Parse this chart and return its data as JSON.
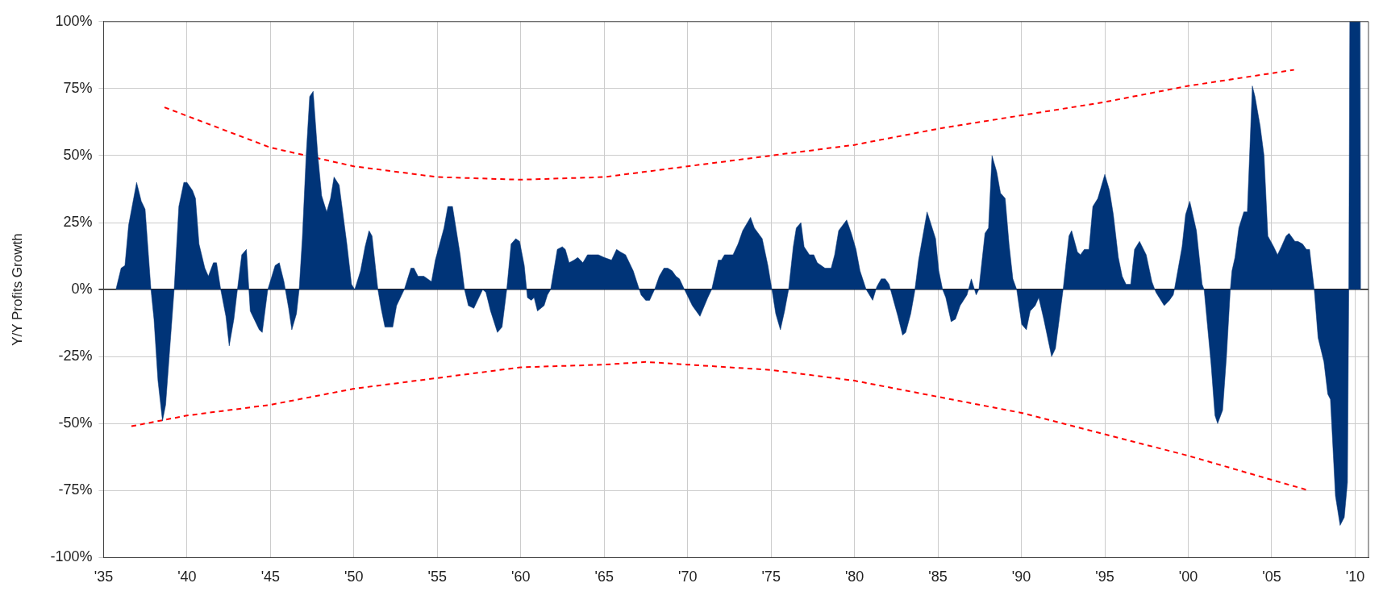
{
  "chart_data": {
    "type": "area",
    "ylabel": "Y/Y Profits Growth",
    "xlim": [
      1935,
      2010.8
    ],
    "ylim": [
      -100,
      100
    ],
    "xticks": [
      {
        "value": 1935,
        "label": "'35"
      },
      {
        "value": 1940,
        "label": "'40"
      },
      {
        "value": 1945,
        "label": "'45"
      },
      {
        "value": 1950,
        "label": "'50"
      },
      {
        "value": 1955,
        "label": "'55"
      },
      {
        "value": 1960,
        "label": "'60"
      },
      {
        "value": 1965,
        "label": "'65"
      },
      {
        "value": 1970,
        "label": "'70"
      },
      {
        "value": 1975,
        "label": "'75"
      },
      {
        "value": 1980,
        "label": "'80"
      },
      {
        "value": 1985,
        "label": "'85"
      },
      {
        "value": 1990,
        "label": "'90"
      },
      {
        "value": 1995,
        "label": "'95"
      },
      {
        "value": 2000,
        "label": "'00"
      },
      {
        "value": 2005,
        "label": "'05"
      },
      {
        "value": 2010,
        "label": "'10"
      }
    ],
    "yticks": [
      {
        "value": -100,
        "label": "-100%"
      },
      {
        "value": -75,
        "label": "-75%"
      },
      {
        "value": -50,
        "label": "-50%"
      },
      {
        "value": -25,
        "label": "-25%"
      },
      {
        "value": 0,
        "label": "0%"
      },
      {
        "value": 25,
        "label": "25%"
      },
      {
        "value": 50,
        "label": "50%"
      },
      {
        "value": 75,
        "label": "75%"
      },
      {
        "value": 100,
        "label": "100%"
      }
    ],
    "grid": true,
    "legend": false,
    "marker": "none",
    "series": [
      {
        "color": "#003478",
        "x": [
          1935.74,
          1936.05,
          1936.28,
          1936.5,
          1936.98,
          1937.26,
          1937.49,
          1937.84,
          1938.02,
          1938.26,
          1938.53,
          1938.72,
          1939.23,
          1939.51,
          1939.81,
          1940,
          1940.33,
          1940.51,
          1940.72,
          1941.07,
          1941.28,
          1941.58,
          1941.77,
          1942.02,
          1942.33,
          1942.53,
          1942.81,
          1943.02,
          1943.28,
          1943.56,
          1943.79,
          1944.33,
          1944.51,
          1944.84,
          1945.28,
          1945.53,
          1945.81,
          1946.09,
          1946.28,
          1946.56,
          1946.72,
          1946.91,
          1947.14,
          1947.35,
          1947.56,
          1947.84,
          1948.07,
          1948.37,
          1948.6,
          1948.81,
          1949.12,
          1949.58,
          1949.86,
          1950.05,
          1950.4,
          1950.67,
          1950.91,
          1951.09,
          1951.44,
          1951.63,
          1951.86,
          1952.09,
          1952.33,
          1952.56,
          1953.02,
          1953.42,
          1953.6,
          1953.84,
          1954.19,
          1954.65,
          1954.88,
          1955.4,
          1955.63,
          1955.91,
          1956.37,
          1956.63,
          1956.86,
          1957.19,
          1957.72,
          1957.91,
          1958.19,
          1958.6,
          1958.88,
          1959.16,
          1959.42,
          1959.7,
          1959.93,
          1960.21,
          1960.4,
          1960.63,
          1960.8,
          1961.0,
          1961.4,
          1961.6,
          1961.79,
          1962.19,
          1962.49,
          1962.67,
          1962.9,
          1963.19,
          1963.42,
          1963.72,
          1964,
          1964.23,
          1964.65,
          1965,
          1965.44,
          1965.74,
          1965.98,
          1966.28,
          1966.74,
          1967.21,
          1967.49,
          1967.72,
          1968.02,
          1968.3,
          1968.58,
          1968.81,
          1969.07,
          1969.3,
          1969.51,
          1969.81,
          1970.28,
          1970.74,
          1971.21,
          1971.44,
          1971.84,
          1972.02,
          1972.21,
          1972.44,
          1972.72,
          1973.02,
          1973.3,
          1973.77,
          1974,
          1974.47,
          1974.81,
          1975.05,
          1975.28,
          1975.56,
          1975.81,
          1976.05,
          1976.33,
          1976.51,
          1976.79,
          1976.98,
          1977.3,
          1977.56,
          1977.77,
          1978.23,
          1978.6,
          1978.81,
          1979.05,
          1979.53,
          1979.81,
          1980.09,
          1980.33,
          1980.7,
          1981.09,
          1981.33,
          1981.6,
          1981.84,
          1982.07,
          1982.6,
          1982.88,
          1983.07,
          1983.37,
          1983.6,
          1983.84,
          1984.35,
          1984.86,
          1985.05,
          1985.28,
          1985.47,
          1985.79,
          1986.05,
          1986.33,
          1986.74,
          1987.0,
          1987.29,
          1987.45,
          1987.82,
          1988.03,
          1988.24,
          1988.52,
          1988.75,
          1989.03,
          1989.26,
          1989.49,
          1989.72,
          1990.02,
          1990.3,
          1990.53,
          1990.83,
          1991.04,
          1991.34,
          1991.81,
          1992.04,
          1992.27,
          1992.5,
          1992.85,
          1993.01,
          1993.36,
          1993.54,
          1993.77,
          1994.05,
          1994.28,
          1994.58,
          1995,
          1995.28,
          1995.51,
          1995.81,
          1996.04,
          1996.27,
          1996.55,
          1996.78,
          1997.08,
          1997.48,
          1997.82,
          1998.06,
          1998.56,
          1998.87,
          1999.1,
          1999.17,
          1999.63,
          1999.84,
          2000.09,
          2000.49,
          2000.83,
          2000.95,
          2001.37,
          2001.6,
          2001.76,
          2002.06,
          2002.29,
          2002.52,
          2002.62,
          2002.8,
          2003.03,
          2003.33,
          2003.54,
          2003.84,
          2004,
          2004.31,
          2004.54,
          2004.77,
          2005.12,
          2005.35,
          2005.58,
          2005.86,
          2006.04,
          2006.39,
          2006.57,
          2006.85,
          2007.08,
          2007.27,
          2007.55,
          2007.78,
          2008.13,
          2008.36,
          2008.52,
          2008.82,
          2009.1,
          2009.35,
          2009.54,
          2009.62,
          2009.68,
          2010.3,
          2010.33
        ],
        "values": [
          0,
          8,
          9,
          24,
          40,
          33,
          30,
          0,
          -11,
          -34,
          -49,
          -43,
          0,
          31,
          40,
          40,
          37,
          34,
          17,
          8,
          5,
          10,
          10,
          0,
          -10,
          -21,
          -11,
          0,
          13,
          15,
          -8,
          -15,
          -16,
          0,
          9,
          10,
          3,
          -7,
          -15,
          -9,
          0,
          19,
          50,
          72,
          74,
          50,
          35,
          29,
          34,
          42,
          39,
          17,
          2,
          0,
          7,
          16,
          22,
          20,
          0,
          -7,
          -14,
          -14,
          -14,
          -6,
          0,
          8,
          8,
          5,
          5,
          3,
          11,
          23,
          31,
          31,
          13,
          0,
          -6,
          -7,
          0,
          -1,
          -8,
          -16,
          -14,
          0,
          17,
          19,
          18,
          9,
          -3,
          -4,
          -3,
          -8,
          -6,
          -2,
          0,
          15,
          16,
          15,
          10,
          11,
          12,
          10,
          13,
          13,
          13,
          12,
          11,
          15,
          14,
          13,
          7,
          -2,
          -4,
          -4,
          0,
          5,
          8,
          8,
          7,
          5,
          4,
          0,
          -6,
          -10,
          -3,
          0,
          11,
          11,
          13,
          13,
          13,
          17,
          22,
          27,
          23,
          19,
          9,
          0,
          -9,
          -15,
          -8,
          0,
          16,
          23,
          25,
          16,
          13,
          13,
          10,
          8,
          8,
          13,
          22,
          26,
          21,
          15,
          7,
          0,
          -4,
          1,
          4,
          4,
          2,
          -10,
          -17,
          -16,
          -9,
          -1,
          11,
          29,
          19,
          7,
          0,
          -3,
          -12,
          -11,
          -6,
          -2,
          4,
          -2,
          0,
          21,
          23,
          50,
          44,
          36,
          34,
          17,
          4,
          0,
          -13,
          -15,
          -8,
          -6,
          -3,
          -11,
          -25,
          -22,
          -11,
          0,
          20,
          22,
          14,
          13,
          15,
          15,
          31,
          34,
          43,
          37,
          28,
          12,
          5,
          2,
          2,
          15,
          18,
          13,
          3,
          -1,
          -6,
          -4,
          -2,
          0,
          16,
          28,
          33,
          22,
          2,
          0,
          -28,
          -47,
          -50,
          -45,
          -25,
          0,
          7,
          12,
          23,
          29,
          29,
          76,
          72,
          61,
          50,
          20,
          16,
          13,
          16,
          20,
          21,
          18,
          18,
          17,
          15,
          15,
          0,
          -18,
          -27,
          -39,
          -41,
          -77,
          -88,
          -85,
          -72,
          0,
          100,
          100,
          0
        ]
      },
      {
        "type": "line",
        "color": "#ff0000",
        "line_style": "dashed",
        "x": [
          1938.65,
          1945,
          1950,
          1955,
          1960,
          1965,
          1970,
          1975,
          1980,
          1985,
          1990,
          1995,
          2000,
          2006.34
        ],
        "values": [
          68,
          53,
          46,
          42,
          41,
          42,
          46,
          50,
          54,
          60,
          65,
          70,
          76,
          82
        ]
      },
      {
        "type": "line",
        "color": "#ff0000",
        "line_style": "dashed",
        "x": [
          1936.67,
          1940,
          1945,
          1950,
          1955,
          1960,
          1965,
          1967.5,
          1970,
          1975,
          1980,
          1985,
          1990,
          1995,
          2000,
          2005,
          2007.25
        ],
        "values": [
          -51,
          -47,
          -43,
          -37,
          -33,
          -29,
          -28,
          -27,
          -28,
          -30,
          -34,
          -40,
          -46,
          -54,
          -62,
          -71,
          -75
        ]
      }
    ]
  }
}
